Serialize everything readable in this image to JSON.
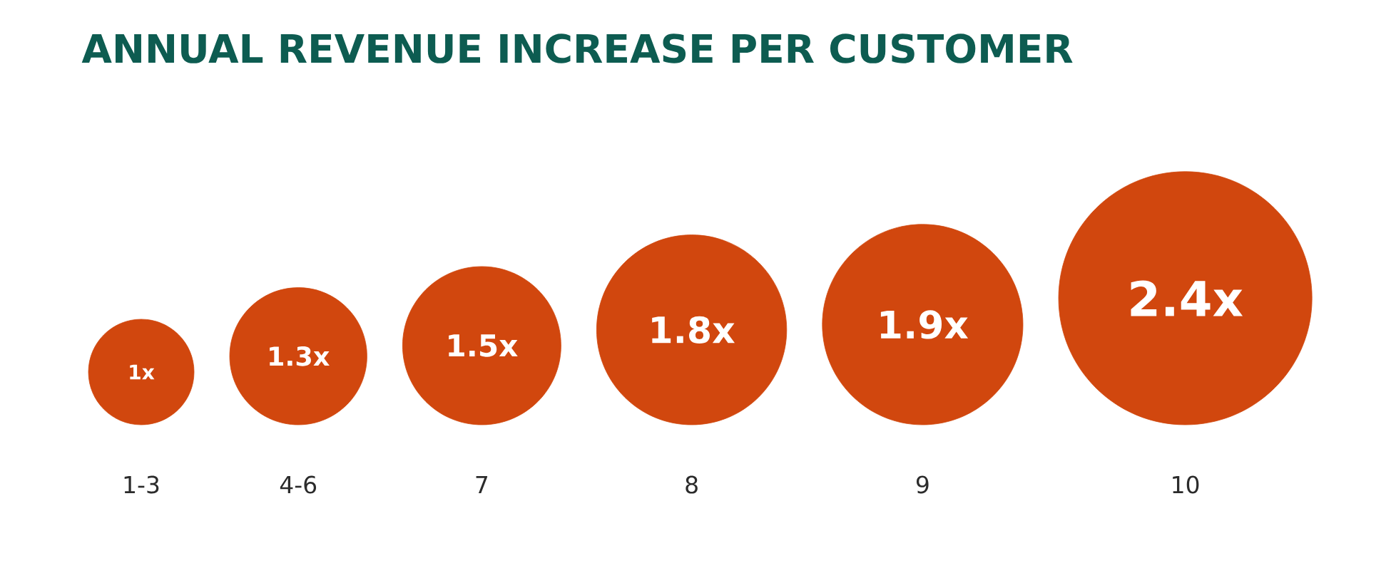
{
  "chart_data": {
    "type": "other",
    "title": "ANNUAL REVENUE INCREASE PER CUSTOMER",
    "categories": [
      "1-3",
      "4-6",
      "7",
      "8",
      "9",
      "10"
    ],
    "values": [
      1,
      1.3,
      1.5,
      1.8,
      1.9,
      2.4
    ],
    "value_labels": [
      "1x",
      "1.3x",
      "1.5x",
      "1.8x",
      "1.9x",
      "2.4x"
    ],
    "color": "#d1470e"
  }
}
